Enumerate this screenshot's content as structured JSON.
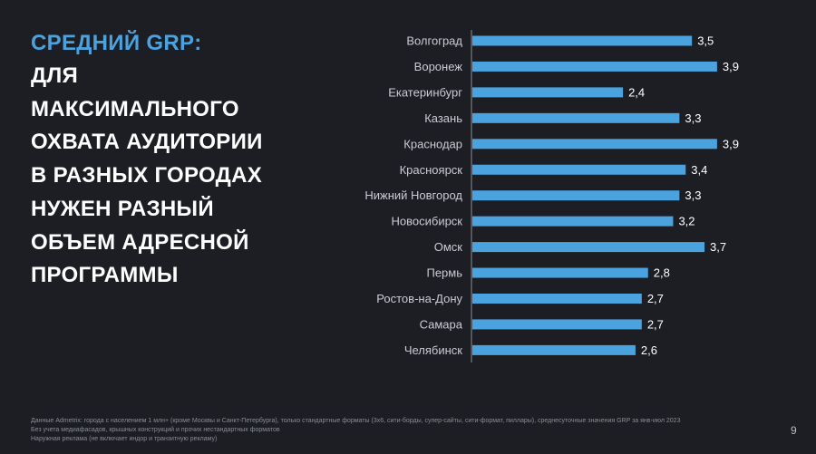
{
  "headline": {
    "accent": "СРЕДНИЙ GRP:",
    "lines": [
      "ДЛЯ",
      "МАКСИМАЛЬНОГО",
      "ОХВАТА АУДИТОРИИ",
      "В РАЗНЫХ ГОРОДАХ",
      "НУЖЕН РАЗНЫЙ",
      "ОБЪЕМ АДРЕСНОЙ",
      "ПРОГРАММЫ"
    ]
  },
  "colors": {
    "background": "#1c1e24",
    "accent": "#4aa3df",
    "bar": "#4aa3df",
    "text": "#ffffff",
    "category_label": "#c9ccd2"
  },
  "chart_data": {
    "type": "bar",
    "orientation": "horizontal",
    "categories": [
      "Волгоград",
      "Воронеж",
      "Екатеринбург",
      "Казань",
      "Краснодар",
      "Красноярск",
      "Нижний Новгород",
      "Новосибирск",
      "Омск",
      "Пермь",
      "Ростов-на-Дону",
      "Самара",
      "Челябинск"
    ],
    "values": [
      3.5,
      3.9,
      2.4,
      3.3,
      3.9,
      3.4,
      3.3,
      3.2,
      3.7,
      2.8,
      2.7,
      2.7,
      2.6
    ],
    "value_labels": [
      "3,5",
      "3,9",
      "2,4",
      "3,3",
      "3,9",
      "3,4",
      "3,3",
      "3,2",
      "3,7",
      "2,8",
      "2,7",
      "2,7",
      "2,6"
    ],
    "xlim": [
      0,
      4
    ],
    "grid": false,
    "legend": "none"
  },
  "footnote": [
    "Данные Admetrix: города с населением 1 млн+ (кроме Москвы и Санкт-Петербурга), только стандартные форматы (3х6, сити-борды, супер-сайты, сити-формат, пиллары), среднесуточные значения GRP за янв-июл 2023",
    "Без учета медиафасадов, крышных конструкций и прочих нестандартных форматов",
    "Наружная реклама (не включает индор и транзитную рекламу)"
  ],
  "page_number": "9"
}
